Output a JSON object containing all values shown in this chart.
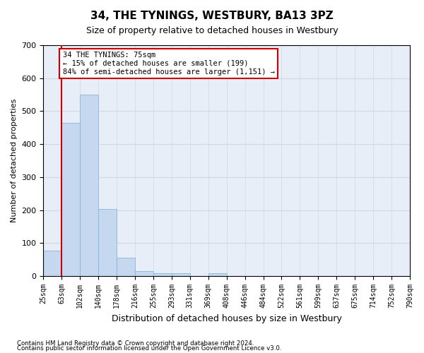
{
  "title": "34, THE TYNINGS, WESTBURY, BA13 3PZ",
  "subtitle": "Size of property relative to detached houses in Westbury",
  "xlabel": "Distribution of detached houses by size in Westbury",
  "ylabel": "Number of detached properties",
  "footnote1": "Contains HM Land Registry data © Crown copyright and database right 2024.",
  "footnote2": "Contains public sector information licensed under the Open Government Licence v3.0.",
  "bin_labels": [
    "25sqm",
    "63sqm",
    "102sqm",
    "140sqm",
    "178sqm",
    "216sqm",
    "255sqm",
    "293sqm",
    "331sqm",
    "369sqm",
    "408sqm",
    "446sqm",
    "484sqm",
    "522sqm",
    "561sqm",
    "599sqm",
    "637sqm",
    "675sqm",
    "714sqm",
    "752sqm",
    "790sqm"
  ],
  "bar_values": [
    78,
    465,
    551,
    204,
    57,
    15,
    10,
    9,
    0,
    9,
    0,
    0,
    0,
    0,
    0,
    0,
    0,
    0,
    0,
    0
  ],
  "bar_color": "#c5d8f0",
  "bar_edge_color": "#7aafd4",
  "vline_x": 1,
  "vline_color": "#cc0000",
  "ylim": [
    0,
    700
  ],
  "yticks": [
    0,
    100,
    200,
    300,
    400,
    500,
    600,
    700
  ],
  "annotation_text": "34 THE TYNINGS: 75sqm\n← 15% of detached houses are smaller (199)\n84% of semi-detached houses are larger (1,151) →",
  "annotation_box_color": "#ffffff",
  "annotation_box_edge": "#cc0000",
  "grid_color": "#d0d8e4",
  "bg_color": "#e8eef8"
}
